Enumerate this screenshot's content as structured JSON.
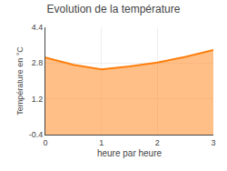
{
  "chart_data": {
    "type": "area",
    "title": "Evolution de la température",
    "xlabel": "heure par heure",
    "ylabel": "Température en °C",
    "x": [
      0,
      0.5,
      1.0,
      1.5,
      2.0,
      2.5,
      3.0
    ],
    "values": [
      3.05,
      2.72,
      2.52,
      2.65,
      2.82,
      3.08,
      3.38
    ],
    "xlim": [
      0,
      3
    ],
    "ylim": [
      -0.4,
      4.4
    ],
    "xticks": [
      0,
      1,
      2,
      3
    ],
    "yticks": [
      -0.4,
      1.2,
      2.8,
      4.4
    ],
    "grid": true
  }
}
